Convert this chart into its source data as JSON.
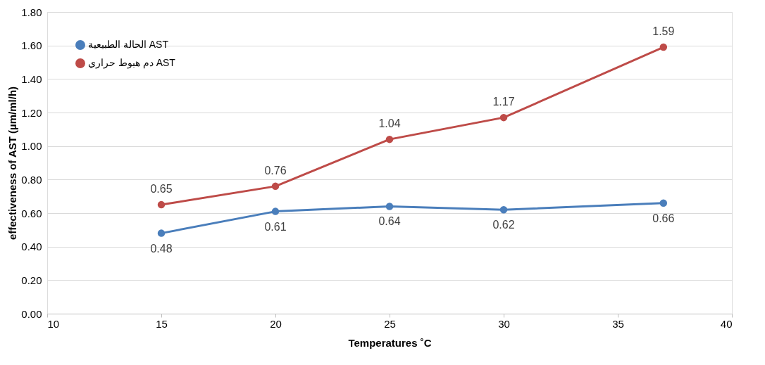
{
  "chart_data": {
    "type": "line",
    "xlabel": "Temperatures ˚C",
    "ylabel": "effectiveness of AST (µm/ml/h)",
    "x": [
      15,
      20,
      25,
      30,
      37
    ],
    "series": [
      {
        "name": "الحالة الطبيعية AST",
        "color": "#4a7ebb",
        "values": [
          0.48,
          0.61,
          0.64,
          0.62,
          0.66
        ]
      },
      {
        "name": "دم هبوط حراري AST",
        "color": "#be4b48",
        "values": [
          0.65,
          0.76,
          1.04,
          1.17,
          1.59
        ]
      }
    ],
    "xlim": [
      10,
      40
    ],
    "xticks": [
      10,
      15,
      20,
      25,
      30,
      35,
      40
    ],
    "ylim": [
      0,
      1.8
    ],
    "yticks": [
      {
        "value": 0,
        "label": "0.00"
      },
      {
        "value": 0.2,
        "label": "0.20"
      },
      {
        "value": 0.4,
        "label": "0.40"
      },
      {
        "value": 0.6,
        "label": "0.60"
      },
      {
        "value": 0.8,
        "label": "0.80"
      },
      {
        "value": 1.0,
        "label": "1.00"
      },
      {
        "value": 1.2,
        "label": "1.20"
      },
      {
        "value": 1.4,
        "label": "1.40"
      },
      {
        "value": 1.6,
        "label": "1.60"
      },
      {
        "value": 1.8,
        "label": "1.80"
      }
    ],
    "grid": "y",
    "legend": "top left",
    "marker": "circle",
    "line_style": "solid",
    "data_labels": true
  }
}
